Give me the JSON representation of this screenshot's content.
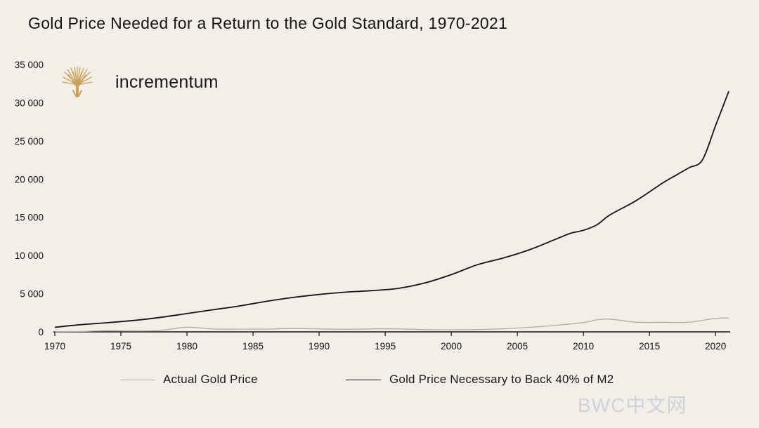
{
  "title": "Gold Price Needed for a Return to the Gold Standard, 1970-2021",
  "brand": {
    "name": "incrementum",
    "logo_icon": "tree-logo-icon",
    "logo_color": "#c9a25a"
  },
  "watermark": "BWC中文网",
  "colors": {
    "background": "#f3efe8",
    "actual": "#b3aca3",
    "necessary": "#141414"
  },
  "chart_data": {
    "type": "line",
    "title": "Gold Price Needed for a Return to the Gold Standard, 1970-2021",
    "xlabel": "",
    "ylabel": "",
    "xlim": [
      1970,
      2021
    ],
    "ylim": [
      0,
      35000
    ],
    "x_ticks": [
      "1970",
      "1975",
      "1980",
      "1985",
      "1990",
      "1995",
      "2000",
      "2005",
      "2010",
      "2015",
      "2020"
    ],
    "y_ticks": [
      "0",
      "5 000",
      "10 000",
      "15 000",
      "20 000",
      "25 000",
      "30 000",
      "35 000"
    ],
    "y_tick_values": [
      0,
      5000,
      10000,
      15000,
      20000,
      25000,
      30000,
      35000
    ],
    "x_tick_values": [
      1970,
      1975,
      1980,
      1985,
      1990,
      1995,
      2000,
      2005,
      2010,
      2015,
      2020
    ],
    "legend_position": "bottom",
    "series": [
      {
        "name": "Actual Gold Price",
        "x": [
          1970,
          1972,
          1974,
          1976,
          1978,
          1980,
          1982,
          1984,
          1986,
          1988,
          1990,
          1992,
          1994,
          1996,
          1998,
          2000,
          2002,
          2004,
          2006,
          2008,
          2010,
          2011,
          2012,
          2014,
          2016,
          2018,
          2020,
          2021
        ],
        "values": [
          36,
          58,
          154,
          125,
          193,
          612,
          376,
          361,
          368,
          437,
          384,
          344,
          384,
          388,
          294,
          279,
          310,
          409,
          604,
          872,
          1225,
          1572,
          1669,
          1266,
          1251,
          1268,
          1770,
          1800
        ]
      },
      {
        "name": "Gold Price Necessary to Back 40% of M2",
        "x": [
          1970,
          1972,
          1974,
          1976,
          1978,
          1980,
          1982,
          1984,
          1986,
          1988,
          1990,
          1992,
          1994,
          1996,
          1998,
          2000,
          2002,
          2004,
          2006,
          2008,
          2009,
          2010,
          2011,
          2012,
          2014,
          2016,
          2017,
          2018,
          2019,
          2020,
          2021
        ],
        "values": [
          600,
          950,
          1200,
          1500,
          1900,
          2400,
          2900,
          3400,
          4000,
          4500,
          4900,
          5200,
          5400,
          5700,
          6400,
          7500,
          8800,
          9700,
          10800,
          12200,
          12900,
          13300,
          14000,
          15300,
          17200,
          19500,
          20500,
          21500,
          22500,
          27000,
          31500
        ]
      }
    ]
  },
  "legend": [
    {
      "label": "Actual Gold Price",
      "color": "#b3aca3"
    },
    {
      "label": "Gold Price Necessary to Back 40% of M2",
      "color": "#141414"
    }
  ]
}
